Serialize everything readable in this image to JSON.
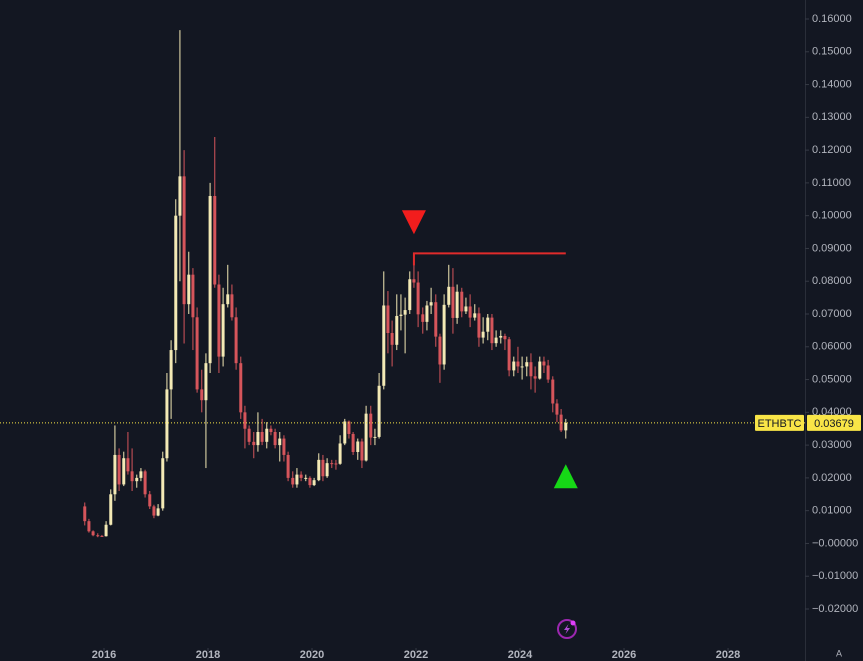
{
  "chart_data": {
    "type": "candlestick",
    "symbol": "ETHBTC",
    "last_price": 0.03679,
    "corner_label": "A",
    "up_color": "#f3e9b5",
    "down_color": "#d6555b",
    "price_color": "#f9e547",
    "grid": false,
    "xlim": [
      2014,
      2029.48
    ],
    "xticks": [
      2016,
      2018,
      2020,
      2022,
      2024,
      2026,
      2028
    ],
    "ylim": [
      -0.0319,
      0.1658
    ],
    "yticks": [
      {
        "value": 0.16,
        "label": "0.16000"
      },
      {
        "value": 0.15,
        "label": "0.15000"
      },
      {
        "value": 0.14,
        "label": "0.14000"
      },
      {
        "value": 0.13,
        "label": "0.13000"
      },
      {
        "value": 0.12,
        "label": "0.12000"
      },
      {
        "value": 0.11,
        "label": "0.11000"
      },
      {
        "value": 0.1,
        "label": "0.10000"
      },
      {
        "value": 0.09,
        "label": "0.09000"
      },
      {
        "value": 0.08,
        "label": "0.08000"
      },
      {
        "value": 0.07,
        "label": "0.07000"
      },
      {
        "value": 0.06,
        "label": "0.06000"
      },
      {
        "value": 0.05,
        "label": "0.05000"
      },
      {
        "value": 0.04,
        "label": "0.04000"
      },
      {
        "value": 0.03,
        "label": "0.03000"
      },
      {
        "value": 0.02,
        "label": "0.02000"
      },
      {
        "value": 0.01,
        "label": "0.01000"
      },
      {
        "value": 0,
        "label": "−0.00000"
      },
      {
        "value": -0.01,
        "label": "−0.01000"
      },
      {
        "value": -0.02,
        "label": "−0.02000"
      }
    ],
    "resistance": {
      "value": 0.0885,
      "x": [
        2021.96,
        2024.88
      ],
      "color": "#e02b2b"
    },
    "markers": [
      {
        "shape": "down",
        "x": 2021.96,
        "y": 0.098,
        "color": "#f21d1d"
      },
      {
        "shape": "up",
        "x": 2024.88,
        "y": 0.0205,
        "color": "#16d816"
      }
    ],
    "x": [
      2015.63,
      2015.71,
      2015.79,
      2015.88,
      2015.96,
      2016.04,
      2016.13,
      2016.21,
      2016.29,
      2016.38,
      2016.46,
      2016.54,
      2016.63,
      2016.71,
      2016.79,
      2016.88,
      2016.96,
      2017.04,
      2017.13,
      2017.21,
      2017.29,
      2017.38,
      2017.46,
      2017.54,
      2017.63,
      2017.71,
      2017.79,
      2017.88,
      2017.96,
      2018.04,
      2018.13,
      2018.21,
      2018.29,
      2018.38,
      2018.46,
      2018.54,
      2018.63,
      2018.71,
      2018.79,
      2018.88,
      2018.96,
      2019.04,
      2019.13,
      2019.21,
      2019.29,
      2019.38,
      2019.46,
      2019.54,
      2019.63,
      2019.71,
      2019.79,
      2019.88,
      2019.96,
      2020.04,
      2020.13,
      2020.21,
      2020.29,
      2020.38,
      2020.46,
      2020.54,
      2020.63,
      2020.71,
      2020.79,
      2020.88,
      2020.96,
      2021.04,
      2021.13,
      2021.21,
      2021.29,
      2021.38,
      2021.46,
      2021.54,
      2021.63,
      2021.71,
      2021.79,
      2021.88,
      2021.96,
      2022.04,
      2022.13,
      2022.21,
      2022.29,
      2022.38,
      2022.46,
      2022.54,
      2022.63,
      2022.71,
      2022.79,
      2022.88,
      2022.96,
      2023.04,
      2023.13,
      2023.21,
      2023.29,
      2023.38,
      2023.46,
      2023.54,
      2023.63,
      2023.71,
      2023.79,
      2023.88,
      2023.96,
      2024.04,
      2024.13,
      2024.21,
      2024.29,
      2024.38,
      2024.46,
      2024.54,
      2024.63,
      2024.71,
      2024.79,
      2024.88
    ],
    "open": [
      0.0113,
      0.0068,
      0.0037,
      0.0025,
      0.0023,
      0.0022,
      0.0057,
      0.015,
      0.027,
      0.018,
      0.026,
      0.022,
      0.019,
      0.02,
      0.022,
      0.015,
      0.0113,
      0.0085,
      0.0107,
      0.026,
      0.047,
      0.059,
      0.1,
      0.112,
      0.073,
      0.082,
      0.069,
      0.047,
      0.0437,
      0.055,
      0.106,
      0.079,
      0.057,
      0.073,
      0.076,
      0.069,
      0.055,
      0.04,
      0.035,
      0.031,
      0.03,
      0.034,
      0.031,
      0.035,
      0.034,
      0.03,
      0.032,
      0.027,
      0.02,
      0.018,
      0.021,
      0.02,
      0.02,
      0.0178,
      0.0193,
      0.0255,
      0.0205,
      0.0245,
      0.0244,
      0.0243,
      0.0305,
      0.0372,
      0.0334,
      0.0279,
      0.0311,
      0.0253,
      0.0396,
      0.0323,
      0.0325,
      0.0481,
      0.0726,
      0.0642,
      0.0606,
      0.0694,
      0.0698,
      0.0712,
      0.0806,
      0.0796,
      0.0699,
      0.0676,
      0.0726,
      0.0736,
      0.0631,
      0.0546,
      0.0728,
      0.0783,
      0.0688,
      0.0768,
      0.0708,
      0.0723,
      0.0689,
      0.0702,
      0.0628,
      0.0646,
      0.0689,
      0.0611,
      0.0628,
      0.0633,
      0.0623,
      0.0528,
      0.0555,
      0.054,
      0.054,
      0.0553,
      0.051,
      0.0503,
      0.0555,
      0.0543,
      0.05,
      0.0427,
      0.0393,
      0.0345
    ],
    "high": [
      0.0125,
      0.0075,
      0.004,
      0.0031,
      0.0026,
      0.0068,
      0.0165,
      0.036,
      0.029,
      0.028,
      0.034,
      0.029,
      0.021,
      0.023,
      0.0225,
      0.016,
      0.0118,
      0.012,
      0.028,
      0.052,
      0.062,
      0.105,
      0.1566,
      0.12,
      0.089,
      0.084,
      0.072,
      0.053,
      0.058,
      0.11,
      0.124,
      0.082,
      0.078,
      0.085,
      0.079,
      0.072,
      0.057,
      0.042,
      0.036,
      0.034,
      0.04,
      0.038,
      0.037,
      0.036,
      0.035,
      0.034,
      0.033,
      0.028,
      0.022,
      0.023,
      0.022,
      0.021,
      0.0205,
      0.02,
      0.0275,
      0.027,
      0.026,
      0.0255,
      0.0255,
      0.033,
      0.038,
      0.0375,
      0.034,
      0.032,
      0.032,
      0.042,
      0.042,
      0.035,
      0.052,
      0.083,
      0.077,
      0.068,
      0.076,
      0.076,
      0.075,
      0.083,
      0.0885,
      0.083,
      0.072,
      0.074,
      0.078,
      0.076,
      0.064,
      0.076,
      0.085,
      0.084,
      0.079,
      0.078,
      0.075,
      0.076,
      0.073,
      0.072,
      0.069,
      0.07,
      0.07,
      0.065,
      0.065,
      0.064,
      0.063,
      0.057,
      0.06,
      0.057,
      0.057,
      0.058,
      0.054,
      0.057,
      0.057,
      0.056,
      0.051,
      0.044,
      0.041,
      0.038
    ],
    "low": [
      0.0055,
      0.0033,
      0.0022,
      0.0019,
      0.002,
      0.0021,
      0.0055,
      0.013,
      0.016,
      0.0175,
      0.021,
      0.016,
      0.017,
      0.019,
      0.014,
      0.0105,
      0.0077,
      0.0083,
      0.01,
      0.025,
      0.038,
      0.055,
      0.08,
      0.061,
      0.07,
      0.059,
      0.046,
      0.04,
      0.023,
      0.052,
      0.078,
      0.052,
      0.054,
      0.072,
      0.068,
      0.053,
      0.038,
      0.029,
      0.03,
      0.026,
      0.028,
      0.03,
      0.029,
      0.033,
      0.029,
      0.025,
      0.025,
      0.019,
      0.017,
      0.017,
      0.019,
      0.019,
      0.017,
      0.0175,
      0.019,
      0.019,
      0.02,
      0.023,
      0.0225,
      0.024,
      0.03,
      0.032,
      0.027,
      0.0255,
      0.023,
      0.025,
      0.03,
      0.03,
      0.032,
      0.047,
      0.058,
      0.054,
      0.059,
      0.065,
      0.058,
      0.07,
      0.078,
      0.066,
      0.064,
      0.065,
      0.07,
      0.06,
      0.049,
      0.053,
      0.072,
      0.064,
      0.067,
      0.069,
      0.07,
      0.066,
      0.068,
      0.06,
      0.061,
      0.062,
      0.059,
      0.06,
      0.061,
      0.059,
      0.051,
      0.051,
      0.052,
      0.05,
      0.051,
      0.047,
      0.046,
      0.05,
      0.052,
      0.049,
      0.04,
      0.037,
      0.034,
      0.032
    ],
    "close": [
      0.0068,
      0.0037,
      0.0025,
      0.0023,
      0.0022,
      0.0057,
      0.015,
      0.027,
      0.018,
      0.026,
      0.022,
      0.019,
      0.02,
      0.022,
      0.015,
      0.0113,
      0.0085,
      0.0107,
      0.026,
      0.047,
      0.059,
      0.1,
      0.112,
      0.073,
      0.082,
      0.069,
      0.047,
      0.0437,
      0.055,
      0.106,
      0.079,
      0.057,
      0.073,
      0.076,
      0.069,
      0.055,
      0.04,
      0.035,
      0.031,
      0.03,
      0.034,
      0.031,
      0.035,
      0.034,
      0.03,
      0.032,
      0.027,
      0.02,
      0.018,
      0.021,
      0.02,
      0.02,
      0.0178,
      0.0193,
      0.0255,
      0.0205,
      0.0245,
      0.0244,
      0.0243,
      0.0305,
      0.0372,
      0.0334,
      0.0279,
      0.0311,
      0.0253,
      0.0396,
      0.0323,
      0.0325,
      0.0481,
      0.0726,
      0.0642,
      0.0606,
      0.0694,
      0.0698,
      0.0712,
      0.0806,
      0.0796,
      0.0699,
      0.0676,
      0.0726,
      0.0736,
      0.0631,
      0.0546,
      0.0728,
      0.0783,
      0.0688,
      0.0768,
      0.0708,
      0.0723,
      0.0689,
      0.0702,
      0.0628,
      0.0646,
      0.0689,
      0.0611,
      0.0628,
      0.0633,
      0.0623,
      0.0528,
      0.0555,
      0.054,
      0.054,
      0.0553,
      0.051,
      0.0503,
      0.0555,
      0.0543,
      0.05,
      0.0427,
      0.0393,
      0.0345,
      0.0368
    ]
  }
}
